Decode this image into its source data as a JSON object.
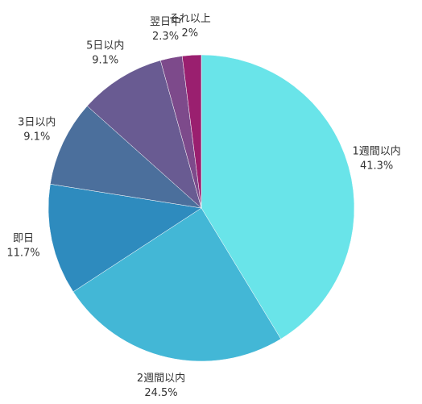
{
  "chart_data": {
    "type": "pie",
    "categories": [
      "1週間以内",
      "2週間以内",
      "即日",
      "3日以内",
      "5日以内",
      "翌日中",
      "それ以上"
    ],
    "values": [
      41.3,
      24.5,
      11.7,
      9.1,
      9.1,
      2.3,
      2
    ],
    "value_labels": [
      "41.3%",
      "24.5%",
      "11.7%",
      "9.1%",
      "9.1%",
      "2.3%",
      "2%"
    ],
    "colors": [
      "#69e4e9",
      "#43b7d6",
      "#2e8bbe",
      "#4b6f9c",
      "#695b92",
      "#7d4a8b",
      "#9a1f6f"
    ]
  }
}
